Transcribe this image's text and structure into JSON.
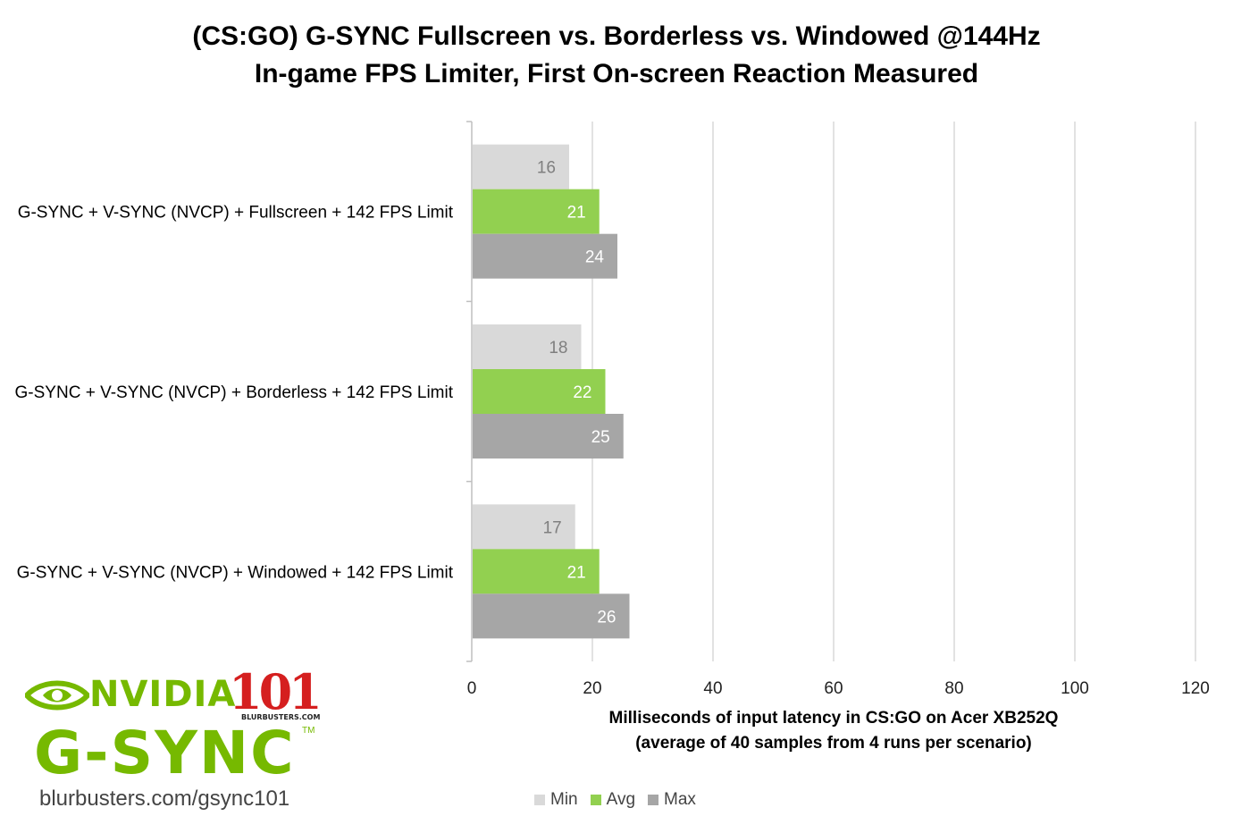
{
  "chart_data": {
    "type": "bar",
    "orientation": "horizontal",
    "title": "(CS:GO) G-SYNC Fullscreen vs. Borderless vs. Windowed @144Hz",
    "subtitle": "In-game FPS Limiter, First On-screen Reaction Measured",
    "categories": [
      "G-SYNC + V-SYNC (NVCP) + Fullscreen + 142 FPS Limit",
      "G-SYNC + V-SYNC (NVCP) + Borderless + 142 FPS Limit",
      "G-SYNC + V-SYNC (NVCP) + Windowed + 142 FPS Limit"
    ],
    "series": [
      {
        "name": "Min",
        "values": [
          16,
          18,
          17
        ],
        "color": "#d9d9d9",
        "label_color": "#7f7f7f"
      },
      {
        "name": "Avg",
        "values": [
          21,
          22,
          21
        ],
        "color": "#92d050",
        "label_color": "#ffffff"
      },
      {
        "name": "Max",
        "values": [
          24,
          25,
          26
        ],
        "color": "#a6a6a6",
        "label_color": "#ffffff"
      }
    ],
    "xlabel_line1": "Milliseconds of input latency in CS:GO on Acer XB252Q",
    "xlabel_line2": "(average of 40 samples from 4 runs per scenario)",
    "xlim": [
      0,
      120
    ],
    "xticks": [
      "0",
      "20",
      "40",
      "60",
      "80",
      "100",
      "120"
    ],
    "grid": true,
    "legend_position": "bottom"
  },
  "logo": {
    "brand": "NVIDIA",
    "badge_number": "101",
    "badge_site": "BLURBUSTERS.COM",
    "product": "G-SYNC",
    "trademark": "TM",
    "url": "blurbusters.com/gsync101"
  }
}
